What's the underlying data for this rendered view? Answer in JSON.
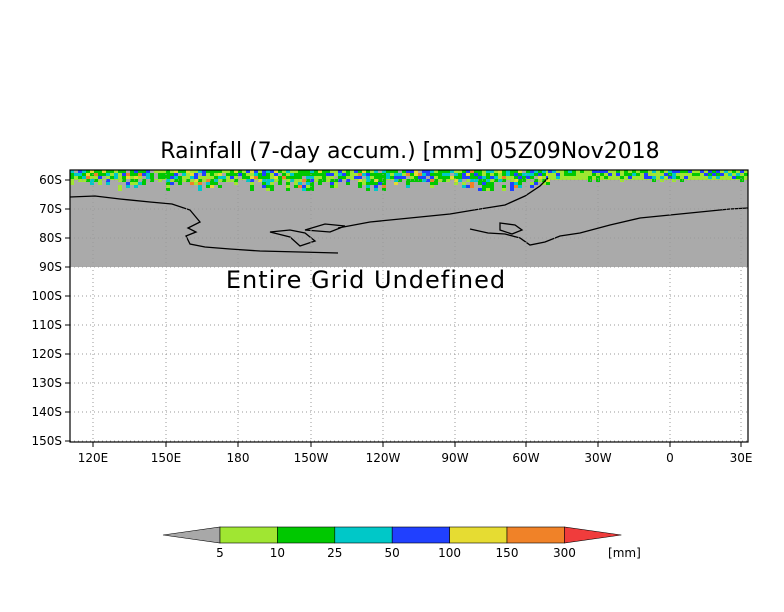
{
  "title": "Rainfall (7-day accum.) [mm] 05Z09Nov2018",
  "annotation": "Entire Grid Undefined",
  "lat_labels": [
    "60S",
    "70S",
    "80S",
    "90S",
    "100S",
    "110S",
    "120S",
    "130S",
    "140S",
    "150S"
  ],
  "lon_labels": [
    "120E",
    "150E",
    "180",
    "150W",
    "120W",
    "90W",
    "60W",
    "30W",
    "0",
    "30E"
  ],
  "colorbar": {
    "levels": [
      "5",
      "10",
      "25",
      "50",
      "100",
      "150",
      "300"
    ],
    "unit": "[mm]",
    "colors": [
      "#a8a8a8",
      "#a0e632",
      "#00c800",
      "#00c8c8",
      "#2040ff",
      "#e6dc32",
      "#f08228",
      "#f03c3c"
    ]
  },
  "colors": {
    "land_mask": "#aaaaaa",
    "coastline": "#000000",
    "grid": "#9a9a9a"
  }
}
